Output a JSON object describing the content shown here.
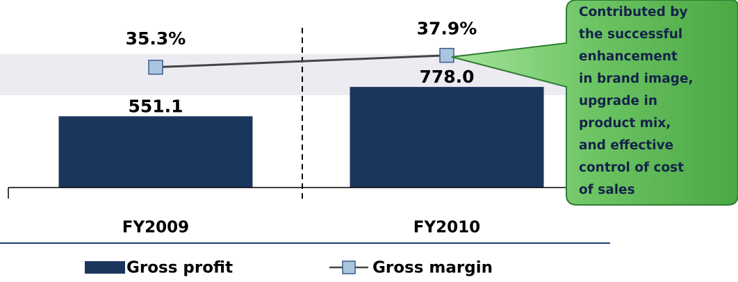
{
  "chart_data": {
    "type": "bar",
    "categories": [
      "FY2009",
      "FY2010"
    ],
    "series": [
      {
        "name": "Gross profit",
        "type": "bar",
        "color": "#1b365d",
        "values": [
          551.1,
          778.0
        ],
        "value_labels": [
          "551.1",
          "778.0"
        ]
      },
      {
        "name": "Gross margin",
        "type": "line",
        "axis": "y2",
        "color": "#444444",
        "marker_color": "#a9c6de",
        "values": [
          35.3,
          37.9
        ],
        "value_labels": [
          "35.3%",
          "37.9%"
        ]
      }
    ],
    "ylim": [
      0,
      1450
    ],
    "y2lim": [
      9,
      50
    ],
    "annotation": [
      "Contributed by",
      "the successful",
      "enhancement",
      "in brand image,",
      "upgrade in",
      "product mix,",
      "and effective",
      "control of cost",
      "of sales"
    ]
  }
}
